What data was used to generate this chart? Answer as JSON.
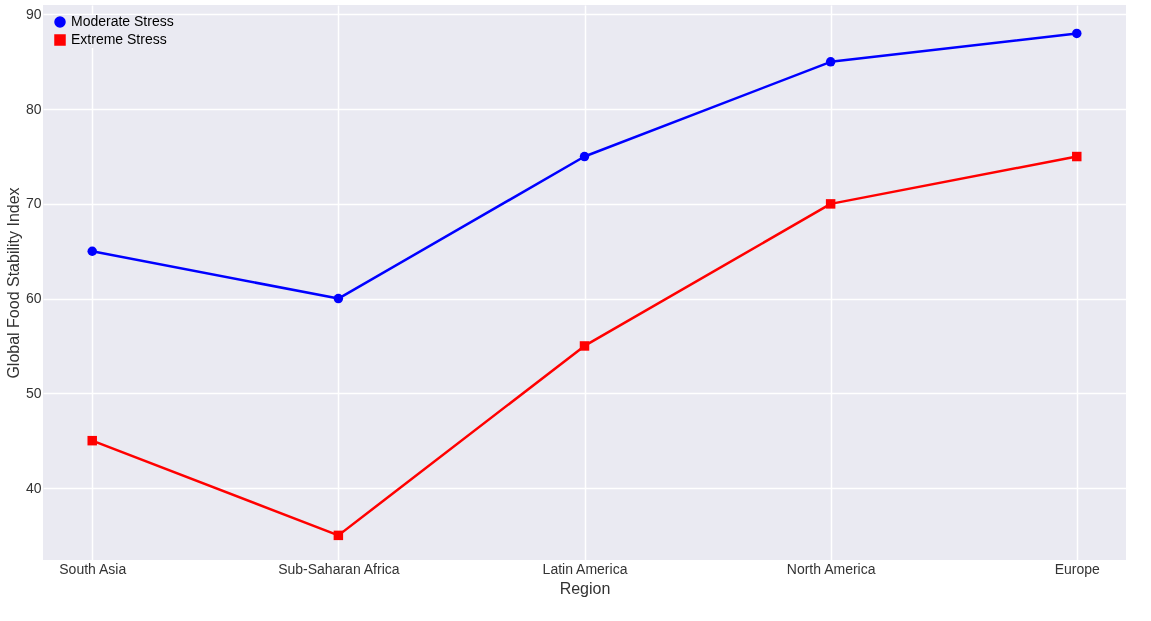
{
  "chart_data": {
    "type": "line",
    "xlabel": "Region",
    "ylabel": "Global Food Stability Index",
    "categories": [
      "South Asia",
      "Sub-Saharan Africa",
      "Latin America",
      "North America",
      "Europe"
    ],
    "series": [
      {
        "name": "Moderate Stress",
        "color": "#0000ff",
        "marker": "circle",
        "values": [
          65,
          60,
          75,
          85,
          88
        ]
      },
      {
        "name": "Extreme Stress",
        "color": "#ff0000",
        "marker": "square",
        "values": [
          45,
          35,
          55,
          70,
          75
        ]
      }
    ],
    "ylim": [
      32.4,
      91
    ],
    "yticks": [
      40,
      50,
      60,
      70,
      80,
      90
    ],
    "grid": true,
    "legend": "top left",
    "line_style": "solid"
  }
}
